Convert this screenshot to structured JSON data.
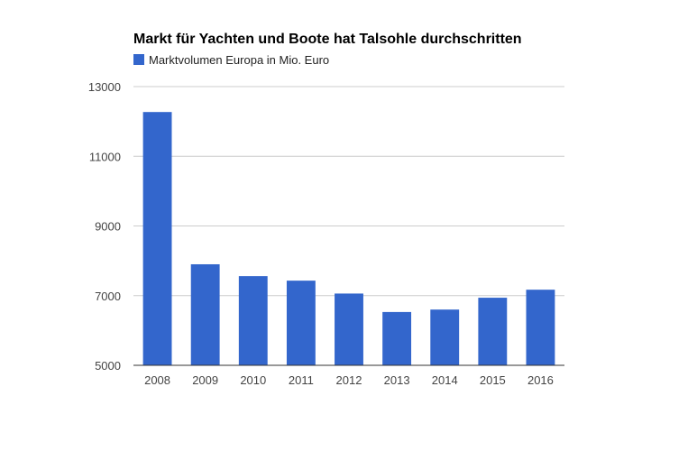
{
  "colors": {
    "bar": "#3366cc",
    "grid": "#cccccc",
    "baseline": "#333333",
    "background": "#ffffff"
  },
  "chart_data": {
    "type": "bar",
    "title": "Markt für Yachten und Boote hat Talsohle durchschritten",
    "legend_position": "top-left",
    "series": [
      {
        "name": "Marktvolumen Europa in Mio. Euro",
        "color": "#3366cc",
        "values": [
          12270,
          7900,
          7560,
          7430,
          7060,
          6530,
          6600,
          6940,
          7170
        ]
      }
    ],
    "categories": [
      "2008",
      "2009",
      "2010",
      "2011",
      "2012",
      "2013",
      "2014",
      "2015",
      "2016"
    ],
    "xlabel": "",
    "ylabel": "",
    "ylim": [
      5000,
      13000
    ],
    "yticks": [
      5000,
      7000,
      9000,
      11000,
      13000
    ],
    "grid": true
  }
}
